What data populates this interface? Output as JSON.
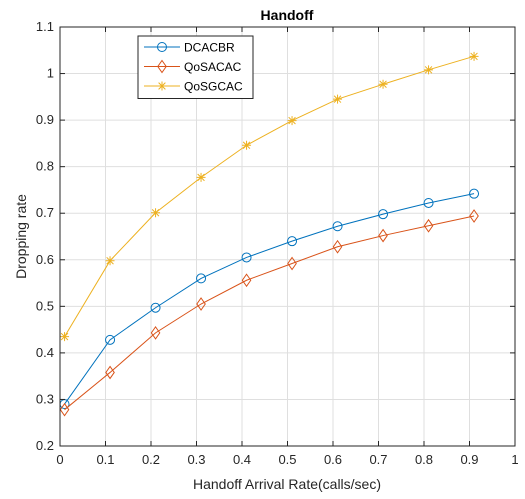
{
  "chart_data": {
    "type": "line",
    "title": "Handoff",
    "xlabel": "Handoff Arrival Rate(calls/sec)",
    "ylabel": "Dropping rate",
    "xlim": [
      0,
      1
    ],
    "ylim": [
      0.2,
      1.1
    ],
    "xticks": [
      0,
      0.1,
      0.2,
      0.3,
      0.4,
      0.5,
      0.6,
      0.7,
      0.8,
      0.9,
      1
    ],
    "xtick_labels": [
      "0",
      "0.1",
      "0.2",
      "0.3",
      "0.4",
      "0.5",
      "0.6",
      "0.7",
      "0.8",
      "0.9",
      "1"
    ],
    "yticks": [
      0.2,
      0.3,
      0.4,
      0.5,
      0.6,
      0.7,
      0.8,
      0.9,
      1,
      1.1
    ],
    "ytick_labels": [
      "0.2",
      "0.3",
      "0.4",
      "0.5",
      "0.6",
      "0.7",
      "0.8",
      "0.9",
      "1",
      "1.1"
    ],
    "grid": true,
    "legend_position": "top-left",
    "x": [
      0.01,
      0.11,
      0.21,
      0.31,
      0.41,
      0.51,
      0.61,
      0.71,
      0.81,
      0.91
    ],
    "series": [
      {
        "name": "DCACBR",
        "color": "#0072BD",
        "marker": "circle",
        "values": [
          0.29,
          0.428,
          0.497,
          0.56,
          0.605,
          0.64,
          0.672,
          0.698,
          0.722,
          0.742
        ]
      },
      {
        "name": "QoSACAC",
        "color": "#D95319",
        "marker": "diamond",
        "values": [
          0.278,
          0.358,
          0.443,
          0.505,
          0.556,
          0.592,
          0.628,
          0.652,
          0.673,
          0.694
        ]
      },
      {
        "name": "QoSGCAC",
        "color": "#EDB120",
        "marker": "asterisk",
        "values": [
          0.435,
          0.598,
          0.701,
          0.777,
          0.846,
          0.899,
          0.945,
          0.977,
          1.008,
          1.037
        ]
      }
    ]
  }
}
